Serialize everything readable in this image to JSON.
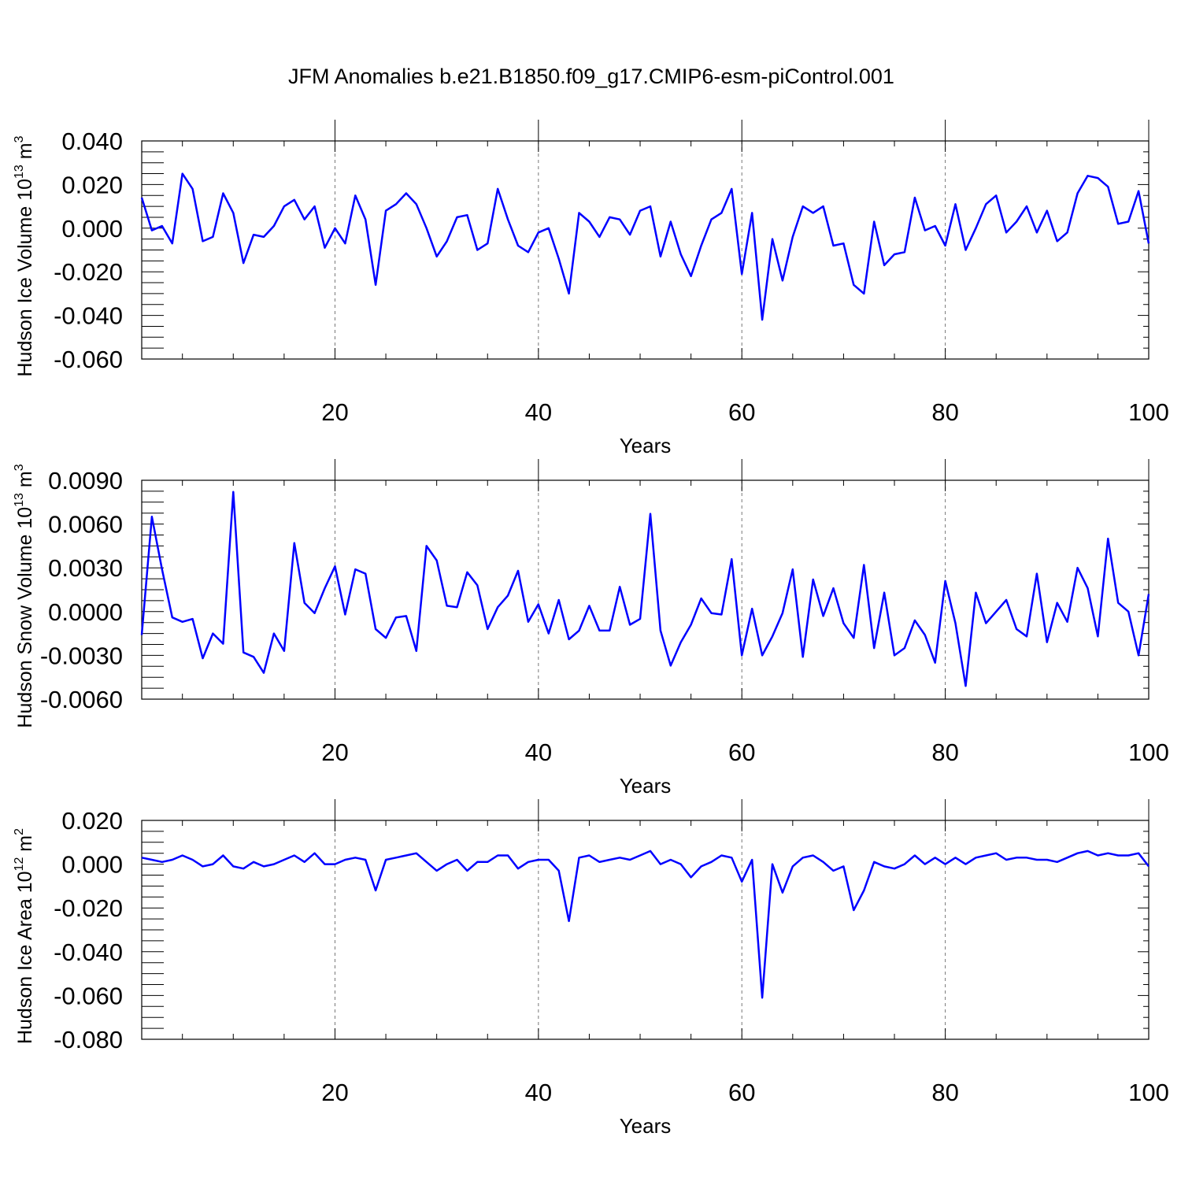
{
  "title": "JFM Anomalies b.e21.B1850.f09_g17.CMIP6-esm-piControl.001",
  "chart_data": [
    {
      "type": "line",
      "ylabel_main": "Hudson Ice Volume 10",
      "ylabel_exp": "13",
      "ylabel_unit": " m",
      "ylabel_unit_exp": "3",
      "xlabel": "Years",
      "xlim": [
        1,
        100
      ],
      "ylim": [
        -0.06,
        0.04
      ],
      "xticks": [
        "20",
        "40",
        "60",
        "80",
        "100"
      ],
      "yticks": [
        "0.040",
        "0.020",
        "0.000",
        "-0.020",
        "-0.040",
        "-0.060"
      ],
      "grid": "vertical dashed at 20, 40, 60, 80",
      "series": [
        {
          "color": "#0000ff",
          "x": [
            1,
            2,
            3,
            4,
            5,
            6,
            7,
            8,
            9,
            10,
            11,
            12,
            13,
            14,
            15,
            16,
            17,
            18,
            19,
            20,
            21,
            22,
            23,
            24,
            25,
            26,
            27,
            28,
            29,
            30,
            31,
            32,
            33,
            34,
            35,
            36,
            37,
            38,
            39,
            40,
            41,
            42,
            43,
            44,
            45,
            46,
            47,
            48,
            49,
            50,
            51,
            52,
            53,
            54,
            55,
            56,
            57,
            58,
            59,
            60,
            61,
            62,
            63,
            64,
            65,
            66,
            67,
            68,
            69,
            70,
            71,
            72,
            73,
            74,
            75,
            76,
            77,
            78,
            79,
            80,
            81,
            82,
            83,
            84,
            85,
            86,
            87,
            88,
            89,
            90,
            91,
            92,
            93,
            94,
            95,
            96,
            97,
            98,
            99,
            100
          ],
          "values": [
            0.014,
            -0.001,
            0.001,
            -0.007,
            0.025,
            0.018,
            -0.006,
            -0.004,
            0.016,
            0.007,
            -0.016,
            -0.003,
            -0.004,
            0.001,
            0.01,
            0.013,
            0.004,
            0.01,
            -0.009,
            0.0,
            -0.007,
            0.015,
            0.004,
            -0.026,
            0.008,
            0.011,
            0.016,
            0.011,
            0.0,
            -0.013,
            -0.006,
            0.005,
            0.006,
            -0.01,
            -0.007,
            0.018,
            0.004,
            -0.008,
            -0.011,
            -0.002,
            0.0,
            -0.014,
            -0.03,
            0.007,
            0.003,
            -0.004,
            0.005,
            0.004,
            -0.003,
            0.008,
            0.01,
            -0.013,
            0.003,
            -0.012,
            -0.022,
            -0.008,
            0.004,
            0.007,
            0.018,
            -0.021,
            0.007,
            -0.042,
            -0.005,
            -0.024,
            -0.004,
            0.01,
            0.007,
            0.01,
            -0.008,
            -0.007,
            -0.026,
            -0.03,
            0.003,
            -0.017,
            -0.012,
            -0.011,
            0.014,
            -0.001,
            0.001,
            -0.008,
            0.011,
            -0.01,
            0.0,
            0.011,
            0.015,
            -0.002,
            0.003,
            0.01,
            -0.002,
            0.008,
            -0.006,
            -0.002,
            0.016,
            0.024,
            0.023,
            0.019,
            0.002,
            0.003,
            0.017,
            -0.007
          ]
        }
      ]
    },
    {
      "type": "line",
      "ylabel_main": "Hudson Snow Volume 10",
      "ylabel_exp": "13",
      "ylabel_unit": " m",
      "ylabel_unit_exp": "3",
      "xlabel": "Years",
      "xlim": [
        1,
        100
      ],
      "ylim": [
        -0.006,
        0.009
      ],
      "xticks": [
        "20",
        "40",
        "60",
        "80",
        "100"
      ],
      "yticks": [
        "0.0090",
        "0.0060",
        "0.0030",
        "0.0000",
        "-0.0030",
        "-0.0060"
      ],
      "grid": "vertical dashed at 20, 40, 60, 80",
      "series": [
        {
          "color": "#0000ff",
          "x": [
            1,
            2,
            3,
            4,
            5,
            6,
            7,
            8,
            9,
            10,
            11,
            12,
            13,
            14,
            15,
            16,
            17,
            18,
            19,
            20,
            21,
            22,
            23,
            24,
            25,
            26,
            27,
            28,
            29,
            30,
            31,
            32,
            33,
            34,
            35,
            36,
            37,
            38,
            39,
            40,
            41,
            42,
            43,
            44,
            45,
            46,
            47,
            48,
            49,
            50,
            51,
            52,
            53,
            54,
            55,
            56,
            57,
            58,
            59,
            60,
            61,
            62,
            63,
            64,
            65,
            66,
            67,
            68,
            69,
            70,
            71,
            72,
            73,
            74,
            75,
            76,
            77,
            78,
            79,
            80,
            81,
            82,
            83,
            84,
            85,
            86,
            87,
            88,
            89,
            90,
            91,
            92,
            93,
            94,
            95,
            96,
            97,
            98,
            99,
            100
          ],
          "values": [
            -0.0016,
            0.0065,
            0.0029,
            -0.0004,
            -0.0007,
            -0.0005,
            -0.0032,
            -0.0015,
            -0.0022,
            0.0082,
            -0.0028,
            -0.0031,
            -0.0042,
            -0.0015,
            -0.0027,
            0.0047,
            0.0006,
            -0.0001,
            0.0016,
            0.0031,
            -0.0002,
            0.0029,
            0.0026,
            -0.0012,
            -0.0018,
            -0.0004,
            -0.0003,
            -0.0027,
            0.0045,
            0.0035,
            0.0004,
            0.0003,
            0.0027,
            0.0018,
            -0.0012,
            0.0003,
            0.0011,
            0.0028,
            -0.0007,
            0.0005,
            -0.0015,
            0.0008,
            -0.0019,
            -0.0013,
            0.0004,
            -0.0013,
            -0.0013,
            0.0017,
            -0.0009,
            -0.0005,
            0.0067,
            -0.0013,
            -0.0037,
            -0.0021,
            -0.0009,
            0.0009,
            -0.0001,
            -0.0002,
            0.0036,
            -0.003,
            0.0002,
            -0.003,
            -0.0017,
            -0.0001,
            0.0029,
            -0.0031,
            0.0022,
            -0.0003,
            0.0016,
            -0.0008,
            -0.0018,
            0.0032,
            -0.0025,
            0.0013,
            -0.003,
            -0.0025,
            -0.0006,
            -0.0016,
            -0.0035,
            0.0021,
            -0.0008,
            -0.0051,
            0.0013,
            -0.0008,
            0.0,
            0.0008,
            -0.0012,
            -0.0017,
            0.0026,
            -0.0021,
            0.0006,
            -0.0007,
            0.003,
            0.0016,
            -0.0017,
            0.005,
            0.0006,
            0.0,
            -0.003,
            0.0012
          ]
        }
      ]
    },
    {
      "type": "line",
      "ylabel_main": "Hudson Ice Area 10",
      "ylabel_exp": "12",
      "ylabel_unit": " m",
      "ylabel_unit_exp": "2",
      "xlabel": "Years",
      "xlim": [
        1,
        100
      ],
      "ylim": [
        -0.08,
        0.02
      ],
      "xticks": [
        "20",
        "40",
        "60",
        "80",
        "100"
      ],
      "yticks": [
        "0.020",
        "0.000",
        "-0.020",
        "-0.040",
        "-0.060",
        "-0.080"
      ],
      "grid": "vertical dashed at 20, 40, 60, 80",
      "series": [
        {
          "color": "#0000ff",
          "x": [
            1,
            2,
            3,
            4,
            5,
            6,
            7,
            8,
            9,
            10,
            11,
            12,
            13,
            14,
            15,
            16,
            17,
            18,
            19,
            20,
            21,
            22,
            23,
            24,
            25,
            26,
            27,
            28,
            29,
            30,
            31,
            32,
            33,
            34,
            35,
            36,
            37,
            38,
            39,
            40,
            41,
            42,
            43,
            44,
            45,
            46,
            47,
            48,
            49,
            50,
            51,
            52,
            53,
            54,
            55,
            56,
            57,
            58,
            59,
            60,
            61,
            62,
            63,
            64,
            65,
            66,
            67,
            68,
            69,
            70,
            71,
            72,
            73,
            74,
            75,
            76,
            77,
            78,
            79,
            80,
            81,
            82,
            83,
            84,
            85,
            86,
            87,
            88,
            89,
            90,
            91,
            92,
            93,
            94,
            95,
            96,
            97,
            98,
            99,
            100
          ],
          "values": [
            0.003,
            0.002,
            0.001,
            0.002,
            0.004,
            0.002,
            -0.001,
            0.0,
            0.004,
            -0.001,
            -0.002,
            0.001,
            -0.001,
            0.0,
            0.002,
            0.004,
            0.001,
            0.005,
            0.0,
            0.0,
            0.002,
            0.003,
            0.002,
            -0.012,
            0.002,
            0.003,
            0.004,
            0.005,
            0.001,
            -0.003,
            0.0,
            0.002,
            -0.003,
            0.001,
            0.001,
            0.004,
            0.004,
            -0.002,
            0.001,
            0.002,
            0.002,
            -0.003,
            -0.026,
            0.003,
            0.004,
            0.001,
            0.002,
            0.003,
            0.002,
            0.004,
            0.006,
            0.0,
            0.002,
            0.0,
            -0.006,
            -0.001,
            0.001,
            0.004,
            0.003,
            -0.008,
            0.002,
            -0.061,
            0.0,
            -0.013,
            -0.001,
            0.003,
            0.004,
            0.001,
            -0.003,
            -0.001,
            -0.021,
            -0.012,
            0.001,
            -0.001,
            -0.002,
            0.0,
            0.004,
            0.0,
            0.003,
            0.0,
            0.003,
            0.0,
            0.003,
            0.004,
            0.005,
            0.002,
            0.003,
            0.003,
            0.002,
            0.002,
            0.001,
            0.003,
            0.005,
            0.006,
            0.004,
            0.005,
            0.004,
            0.004,
            0.005,
            -0.001
          ]
        }
      ]
    }
  ]
}
